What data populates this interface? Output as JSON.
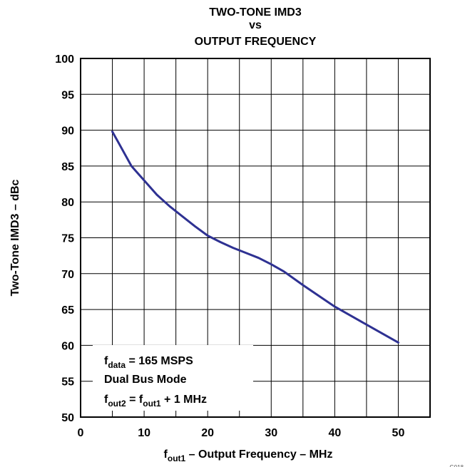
{
  "chart_data": {
    "type": "line",
    "title_lines": [
      "TWO-TONE IMD3",
      "vs",
      "OUTPUT FREQUENCY"
    ],
    "xlabel": {
      "main": "f",
      "sub": "out1",
      "rest": " – Output Frequency – MHz"
    },
    "ylabel": "Two-Tone IMD3 – dBc",
    "xlim": [
      0,
      55
    ],
    "ylim": [
      50,
      100
    ],
    "xticks": [
      0,
      10,
      20,
      30,
      40,
      50
    ],
    "yticks": [
      50,
      55,
      60,
      65,
      70,
      75,
      80,
      85,
      90,
      95,
      100
    ],
    "grid": true,
    "line_color": "#2e3192",
    "series": [
      {
        "x": [
          5,
          6,
          7,
          8,
          9,
          10,
          12,
          14,
          16,
          18,
          20,
          22,
          24,
          26,
          28,
          30,
          32,
          35,
          38,
          40,
          43,
          46,
          50
        ],
        "y": [
          89.8,
          88.2,
          86.6,
          85.0,
          84.0,
          83.0,
          81.0,
          79.4,
          78.0,
          76.6,
          75.3,
          74.4,
          73.6,
          72.9,
          72.2,
          71.3,
          70.3,
          68.4,
          66.6,
          65.4,
          63.9,
          62.4,
          60.4
        ]
      }
    ],
    "annotation": [
      [
        {
          "t": "f",
          "sub": false
        },
        {
          "t": "data",
          "sub": true
        },
        {
          "t": " = 165 MSPS",
          "sub": false
        }
      ],
      [
        {
          "t": "Dual Bus Mode",
          "sub": false
        }
      ],
      [
        {
          "t": "f",
          "sub": false
        },
        {
          "t": "out2",
          "sub": true
        },
        {
          "t": " = f",
          "sub": false
        },
        {
          "t": "out1",
          "sub": true
        },
        {
          "t": " + 1 MHz",
          "sub": false
        }
      ]
    ],
    "figure_id": "G018"
  }
}
